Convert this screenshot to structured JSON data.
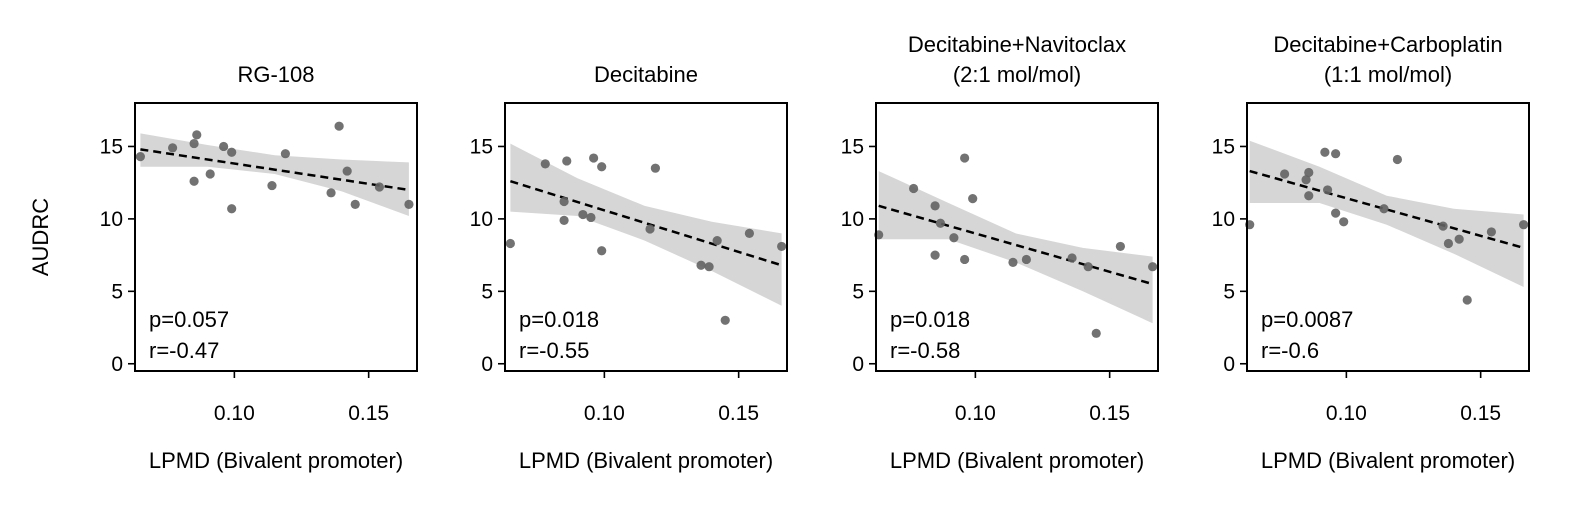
{
  "chart_data": [
    {
      "type": "scatter",
      "title_lines": [
        "RG-108"
      ],
      "xlabel": "LPMD (Bivalent promoter)",
      "ylabel": "AUDRC",
      "xlim": [
        0.063,
        0.168
      ],
      "ylim": [
        -0.5,
        18
      ],
      "xticks": [
        "0.10",
        "0.15"
      ],
      "yticks": [
        "0",
        "5",
        "10",
        "15"
      ],
      "points": [
        [
          0.065,
          14.3
        ],
        [
          0.077,
          14.9
        ],
        [
          0.085,
          15.2
        ],
        [
          0.086,
          15.8
        ],
        [
          0.085,
          12.6
        ],
        [
          0.091,
          13.1
        ],
        [
          0.096,
          15.0
        ],
        [
          0.099,
          14.6
        ],
        [
          0.099,
          10.7
        ],
        [
          0.114,
          12.3
        ],
        [
          0.119,
          14.5
        ],
        [
          0.136,
          11.8
        ],
        [
          0.139,
          16.4
        ],
        [
          0.142,
          13.3
        ],
        [
          0.145,
          11.0
        ],
        [
          0.154,
          12.2
        ],
        [
          0.165,
          11.0
        ]
      ],
      "fit": [
        [
          0.065,
          14.8
        ],
        [
          0.165,
          12.0
        ]
      ],
      "ci_upper": [
        [
          0.065,
          15.9
        ],
        [
          0.09,
          15.1
        ],
        [
          0.115,
          14.4
        ],
        [
          0.14,
          14.1
        ],
        [
          0.165,
          13.9
        ]
      ],
      "ci_lower": [
        [
          0.065,
          13.6
        ],
        [
          0.09,
          13.6
        ],
        [
          0.115,
          13.1
        ],
        [
          0.14,
          11.9
        ],
        [
          0.165,
          10.2
        ]
      ],
      "p_label": "p=0.057",
      "r_label": "r=-0.47"
    },
    {
      "type": "scatter",
      "title_lines": [
        "Decitabine"
      ],
      "xlabel": "LPMD (Bivalent promoter)",
      "ylabel": "",
      "xlim": [
        0.063,
        0.168
      ],
      "ylim": [
        -0.5,
        18
      ],
      "xticks": [
        "0.10",
        "0.15"
      ],
      "yticks": [
        "0",
        "5",
        "10",
        "15"
      ],
      "points": [
        [
          0.065,
          8.3
        ],
        [
          0.078,
          13.8
        ],
        [
          0.085,
          11.2
        ],
        [
          0.085,
          9.9
        ],
        [
          0.086,
          14.0
        ],
        [
          0.092,
          10.3
        ],
        [
          0.095,
          10.1
        ],
        [
          0.096,
          14.2
        ],
        [
          0.099,
          13.6
        ],
        [
          0.099,
          7.8
        ],
        [
          0.117,
          9.3
        ],
        [
          0.119,
          13.5
        ],
        [
          0.136,
          6.8
        ],
        [
          0.139,
          6.7
        ],
        [
          0.142,
          8.5
        ],
        [
          0.145,
          3.0
        ],
        [
          0.154,
          9.0
        ],
        [
          0.166,
          8.1
        ]
      ],
      "fit": [
        [
          0.065,
          12.6
        ],
        [
          0.166,
          6.8
        ]
      ],
      "ci_upper": [
        [
          0.065,
          15.2
        ],
        [
          0.09,
          12.8
        ],
        [
          0.115,
          10.9
        ],
        [
          0.14,
          9.8
        ],
        [
          0.166,
          9.0
        ]
      ],
      "ci_lower": [
        [
          0.065,
          10.5
        ],
        [
          0.09,
          10.2
        ],
        [
          0.115,
          8.5
        ],
        [
          0.14,
          6.4
        ],
        [
          0.166,
          4.0
        ]
      ],
      "p_label": "p=0.018",
      "r_label": "r=-0.55"
    },
    {
      "type": "scatter",
      "title_lines": [
        "Decitabine+Navitoclax",
        "(2:1 mol/mol)"
      ],
      "xlabel": "LPMD (Bivalent promoter)",
      "ylabel": "",
      "xlim": [
        0.063,
        0.168
      ],
      "ylim": [
        -0.5,
        18
      ],
      "xticks": [
        "0.10",
        "0.15"
      ],
      "yticks": [
        "0",
        "5",
        "10",
        "15"
      ],
      "points": [
        [
          0.064,
          8.9
        ],
        [
          0.077,
          12.1
        ],
        [
          0.085,
          10.9
        ],
        [
          0.085,
          7.5
        ],
        [
          0.087,
          9.7
        ],
        [
          0.092,
          8.7
        ],
        [
          0.096,
          14.2
        ],
        [
          0.096,
          7.2
        ],
        [
          0.099,
          11.4
        ],
        [
          0.114,
          7.0
        ],
        [
          0.119,
          7.2
        ],
        [
          0.136,
          7.3
        ],
        [
          0.142,
          6.7
        ],
        [
          0.145,
          2.1
        ],
        [
          0.154,
          8.1
        ],
        [
          0.166,
          6.7
        ]
      ],
      "fit": [
        [
          0.064,
          10.9
        ],
        [
          0.166,
          5.5
        ]
      ],
      "ci_upper": [
        [
          0.064,
          13.3
        ],
        [
          0.09,
          11.1
        ],
        [
          0.115,
          9.0
        ],
        [
          0.14,
          8.0
        ],
        [
          0.166,
          7.4
        ]
      ],
      "ci_lower": [
        [
          0.064,
          8.6
        ],
        [
          0.09,
          8.6
        ],
        [
          0.115,
          7.0
        ],
        [
          0.14,
          5.0
        ],
        [
          0.166,
          2.8
        ]
      ],
      "p_label": "p=0.018",
      "r_label": "r=-0.58"
    },
    {
      "type": "scatter",
      "title_lines": [
        "Decitabine+Carboplatin",
        "(1:1 mol/mol)"
      ],
      "xlabel": "LPMD (Bivalent promoter)",
      "ylabel": "",
      "xlim": [
        0.063,
        0.168
      ],
      "ylim": [
        -0.5,
        18
      ],
      "xticks": [
        "0.10",
        "0.15"
      ],
      "yticks": [
        "0",
        "5",
        "10",
        "15"
      ],
      "points": [
        [
          0.064,
          9.6
        ],
        [
          0.077,
          13.1
        ],
        [
          0.085,
          12.7
        ],
        [
          0.086,
          13.2
        ],
        [
          0.086,
          11.6
        ],
        [
          0.092,
          14.6
        ],
        [
          0.093,
          12.0
        ],
        [
          0.096,
          14.5
        ],
        [
          0.096,
          10.4
        ],
        [
          0.099,
          9.8
        ],
        [
          0.114,
          10.7
        ],
        [
          0.119,
          14.1
        ],
        [
          0.136,
          9.5
        ],
        [
          0.138,
          8.3
        ],
        [
          0.142,
          8.6
        ],
        [
          0.145,
          4.4
        ],
        [
          0.154,
          9.1
        ],
        [
          0.166,
          9.6
        ]
      ],
      "fit": [
        [
          0.064,
          13.3
        ],
        [
          0.166,
          8.0
        ]
      ],
      "ci_upper": [
        [
          0.064,
          15.4
        ],
        [
          0.09,
          13.6
        ],
        [
          0.115,
          11.6
        ],
        [
          0.14,
          10.7
        ],
        [
          0.166,
          10.3
        ]
      ],
      "ci_lower": [
        [
          0.064,
          11.1
        ],
        [
          0.09,
          11.1
        ],
        [
          0.115,
          9.6
        ],
        [
          0.14,
          7.6
        ],
        [
          0.166,
          5.3
        ]
      ],
      "p_label": "p=0.0087",
      "r_label": "r=-0.6"
    }
  ]
}
